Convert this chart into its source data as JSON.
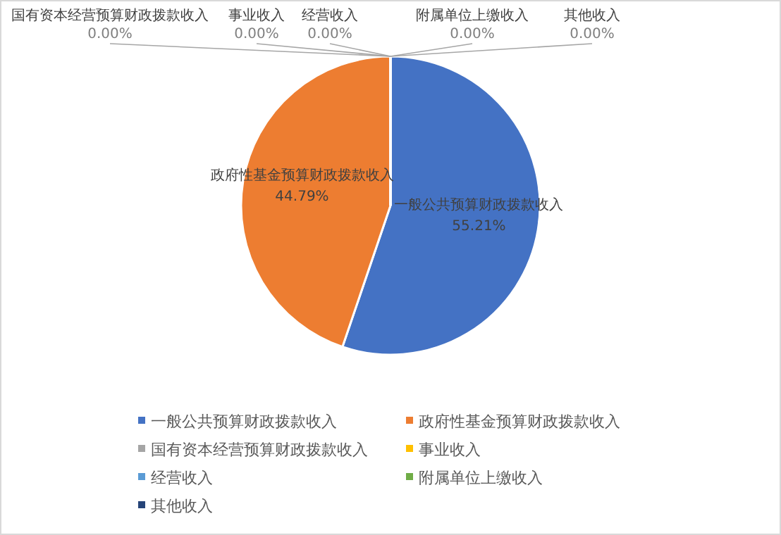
{
  "chart_data": {
    "type": "pie",
    "categories": [
      "一般公共预算财政拨款收入",
      "政府性基金预算财政拨款收入",
      "国有资本经营预算财政拨款收入",
      "事业收入",
      "经营收入",
      "附属单位上缴收入",
      "其他收入"
    ],
    "values": [
      55.21,
      44.79,
      0,
      0,
      0,
      0,
      0
    ],
    "colors": [
      "#4472c4",
      "#ed7d31",
      "#a5a5a5",
      "#ffc000",
      "#5b9bd5",
      "#70ad47",
      "#264478"
    ],
    "value_labels": [
      "55.21%",
      "44.79%",
      "0.00%",
      "0.00%",
      "0.00%",
      "0.00%",
      "0.00%"
    ],
    "legend": "bottom"
  }
}
